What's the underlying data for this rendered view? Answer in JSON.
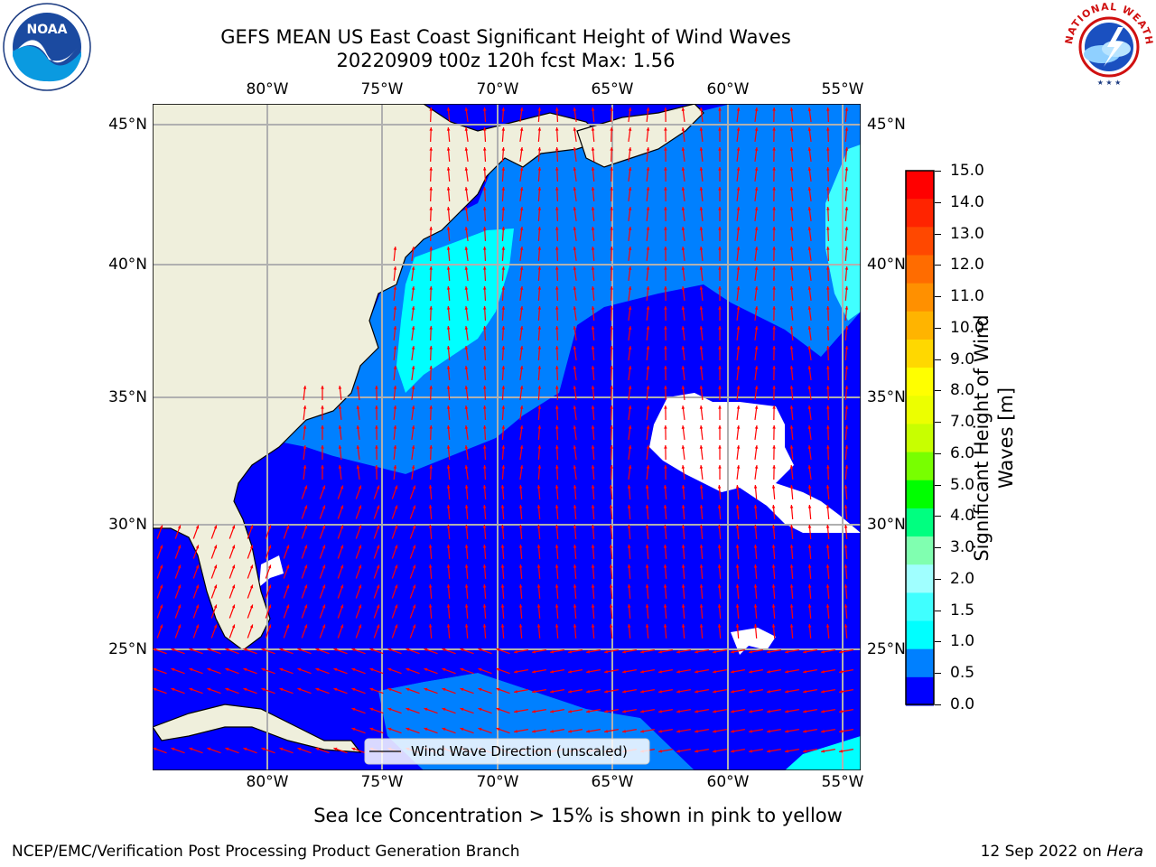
{
  "header": {
    "title_line1": "GEFS MEAN US East Coast Significant Height of Wind Waves",
    "title_line2": "20220909 t00z 120h fcst   Max: 1.56"
  },
  "logos": {
    "left": {
      "text": "NOAA",
      "icon": "noaa-logo"
    },
    "right": {
      "icon": "nws-logo",
      "ring_text": "NATIONAL WEATHER SERVICE"
    }
  },
  "map": {
    "lon_ticks": [
      "80°W",
      "75°W",
      "70°W",
      "65°W",
      "60°W",
      "55°W"
    ],
    "lat_ticks": [
      "45°N",
      "40°N",
      "35°N",
      "30°N",
      "25°N"
    ],
    "lon_range": [
      -85,
      -54
    ],
    "lat_range": [
      20.5,
      46
    ],
    "legend_label": "Wind Wave Direction (unscaled)",
    "colors": {
      "land": "#efefdc",
      "level_0_0_5": "#0000ff",
      "level_0_5_1_0": "#0080ff",
      "level_1_0_1_5": "#00ffff",
      "level_1_5_2_0": "#40ffff",
      "arrow": "#ff0000",
      "grid": "#b0b0b0"
    }
  },
  "colorbar": {
    "label": "Significant Height of Wind Waves [m]",
    "label_line1": "Significant Height of Wind",
    "label_line2": "Waves [m]",
    "tick_labels": [
      "15.0",
      "14.0",
      "13.0",
      "12.0",
      "11.0",
      "10.0",
      "9.0",
      "8.0",
      "7.0",
      "6.0",
      "5.0",
      "4.0",
      "3.0",
      "2.0",
      "1.5",
      "1.0",
      "0.5",
      "0.0"
    ],
    "colors": [
      "#ff0000",
      "#ff2400",
      "#ff4800",
      "#ff6c00",
      "#ff9000",
      "#ffb400",
      "#ffd800",
      "#ffff00",
      "#ecff00",
      "#c8ff00",
      "#78ff00",
      "#00ff00",
      "#00ff80",
      "#80ffb0",
      "#a0ffff",
      "#40ffff",
      "#00ffff",
      "#0080ff",
      "#0000ff"
    ]
  },
  "notes": {
    "sea_ice": "Sea Ice Concentration > 15% is shown in pink to yellow"
  },
  "footer": {
    "left": "NCEP/EMC/Verification Post Processing Product Generation Branch",
    "right_prefix": "12 Sep 2022 on ",
    "right_host": "Hera"
  }
}
